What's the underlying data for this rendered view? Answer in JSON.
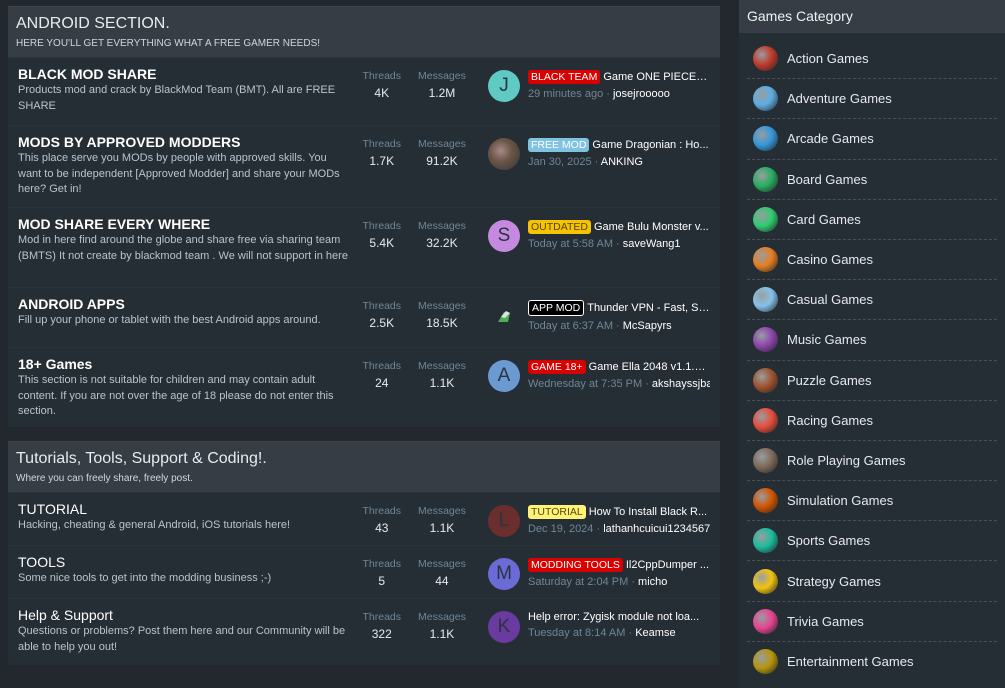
{
  "sections": [
    {
      "title": "ANDROID SECTION.",
      "desc": "HERE YOU'LL GET EVERYTHING WHAT A FREE GAMER NEEDS!",
      "forums": [
        {
          "name": "BLACK MOD SHARE",
          "desc": "Products mod and crack by BlackMod Team (BMT). All are FREE SHARE",
          "threads_label": "Threads",
          "threads": "4K",
          "messages_label": "Messages",
          "messages": "1.2M",
          "avatar": "J",
          "avatar_color": "#5fc9c4",
          "prefix": "BLACK TEAM",
          "prefix_bg": "#d90000",
          "prefix_fg": "#ffffff",
          "title": "Game ONE PIECE T...",
          "time": "29 minutes ago",
          "user": "josejrooooo"
        },
        {
          "name": "MODS BY APPROVED MODDERS",
          "desc": "This place serve you MODs by people with approved skills. You want to be independent [Approved Modder] and share your MODs here? Get in!",
          "threads_label": "Threads",
          "threads": "1.7K",
          "messages_label": "Messages",
          "messages": "91.2K",
          "avatar": "",
          "avatar_color": "#6a5648",
          "prefix": "FREE MOD",
          "prefix_bg": "#7fc3e0",
          "prefix_fg": "#ffffff",
          "title": "Game Dragonian : Ho...",
          "time": "Jan 30, 2025",
          "user": "ANKING"
        },
        {
          "name": "MOD SHARE EVERY WHERE",
          "desc": "Mod in here find around the globe and share free via sharing team (BMTS) It not create by blackmod team . We will not support in here",
          "threads_label": "Threads",
          "threads": "5.4K",
          "messages_label": "Messages",
          "messages": "32.2K",
          "avatar": "S",
          "avatar_color": "#c58ae0",
          "prefix": "OUTDATED",
          "prefix_bg": "#f5c400",
          "prefix_fg": "#5a4300",
          "title": "Game Bulu Monster v...",
          "time": "Today at 5:58 AM",
          "user": "saveWang1"
        },
        {
          "name": "ANDROID APPS",
          "desc": "Fill up your phone or tablet with the best Android apps around.",
          "threads_label": "Threads",
          "threads": "2.5K",
          "messages_label": "Messages",
          "messages": "18.5K",
          "avatar": "",
          "avatar_color": "transparent",
          "prefix": "APP MOD",
          "prefix_bg": "#000000",
          "prefix_fg": "#ffffff",
          "title": "Thunder VPN - Fast, Sa...",
          "time": "Today at 6:37 AM",
          "user": "McSapyrs"
        },
        {
          "name": "18+ Games",
          "desc": "This section is not suitable for children and may contain adult content. If you are not over the age of 18 please do not enter this section.",
          "threads_label": "Threads",
          "threads": "24",
          "messages_label": "Messages",
          "messages": "1.1K",
          "avatar": "A",
          "avatar_color": "#6a9ad0",
          "prefix": "GAME 18+",
          "prefix_bg": "#d90000",
          "prefix_fg": "#ffffff",
          "title": "Game Ella 2048 v1.1.9 ...",
          "time": "Wednesday at 7:35 PM",
          "user": "akshayssjba"
        }
      ]
    },
    {
      "title": "Tutorials, Tools, Support & Coding!.",
      "desc": "Where you can freely share, freely post.",
      "forums": [
        {
          "name": "TUTORIAL",
          "desc": "Hacking, cheating & general Android, iOS tutorials here!",
          "threads_label": "Threads",
          "threads": "43",
          "messages_label": "Messages",
          "messages": "1.1K",
          "avatar": "L",
          "avatar_color": "#6b2e2e",
          "prefix": "TUTORIAL",
          "prefix_bg": "#fff27a",
          "prefix_fg": "#5a4a00",
          "title": "How To Install Black R...",
          "time": "Dec 19, 2024",
          "user": "lathanhcuicui1234567"
        },
        {
          "name": "TOOLS",
          "desc": "Some nice tools to get into the modding business ;-)",
          "threads_label": "Threads",
          "threads": "5",
          "messages_label": "Messages",
          "messages": "44",
          "avatar": "M",
          "avatar_color": "#6b6bd6",
          "prefix": "MODDING TOOLS",
          "prefix_bg": "#d90000",
          "prefix_fg": "#ffffff",
          "title": "Il2CppDumper ...",
          "time": "Saturday at 2:04 PM",
          "user": "micho"
        },
        {
          "name": "Help & Support",
          "desc": "Questions or problems? Post them here and our Community will be able to help you out!",
          "threads_label": "Threads",
          "threads": "322",
          "messages_label": "Messages",
          "messages": "1.1K",
          "avatar": "K",
          "avatar_color": "#6b3aa0",
          "prefix": "",
          "title": "Help error: Zygisk module not loa...",
          "time": "Tuesday at 8:14 AM",
          "user": "Keamse"
        }
      ]
    }
  ],
  "sidebar": {
    "title": "Games Category",
    "items": [
      {
        "label": "Action Games",
        "color": "#c0392b"
      },
      {
        "label": "Adventure Games",
        "color": "#5dade2"
      },
      {
        "label": "Arcade Games",
        "color": "#3498db"
      },
      {
        "label": "Board Games",
        "color": "#27ae60"
      },
      {
        "label": "Card Games",
        "color": "#2ecc71"
      },
      {
        "label": "Casino Games",
        "color": "#e67e22"
      },
      {
        "label": "Casual Games",
        "color": "#85c1e9"
      },
      {
        "label": "Music Games",
        "color": "#8e44ad"
      },
      {
        "label": "Puzzle Games",
        "color": "#a0522d"
      },
      {
        "label": "Racing Games",
        "color": "#e74c3c"
      },
      {
        "label": "Role Playing Games",
        "color": "#7f6a5a"
      },
      {
        "label": "Simulation Games",
        "color": "#d35400"
      },
      {
        "label": "Sports Games",
        "color": "#1abc9c"
      },
      {
        "label": "Strategy Games",
        "color": "#f1c40f"
      },
      {
        "label": "Trivia Games",
        "color": "#e84393"
      },
      {
        "label": "Entertainment Games",
        "color": "#b7950b"
      }
    ]
  }
}
